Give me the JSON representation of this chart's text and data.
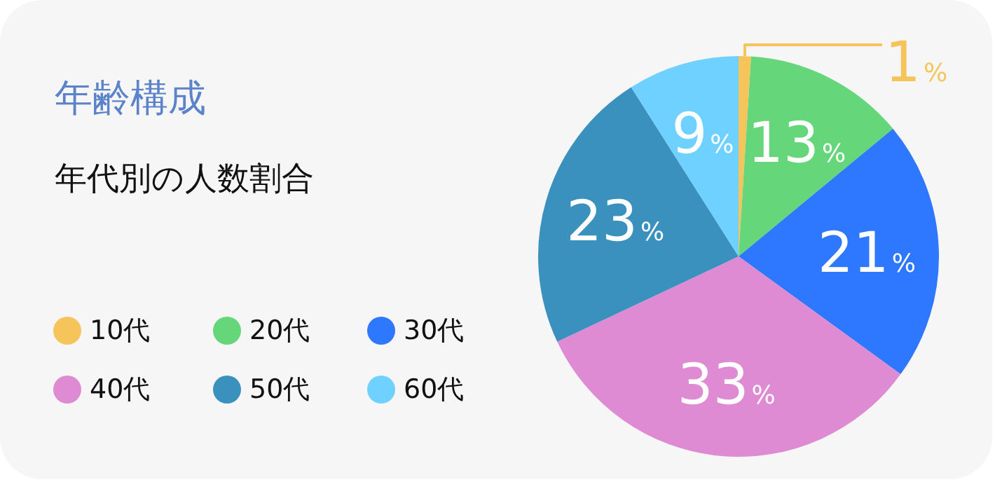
{
  "chart_data": {
    "type": "pie",
    "title": "年齢構成",
    "subtitle": "年代別の人数割合",
    "categories": [
      "10代",
      "20代",
      "30代",
      "40代",
      "50代",
      "60代"
    ],
    "values": [
      1,
      13,
      21,
      33,
      23,
      9
    ],
    "colors": [
      "#f5c55c",
      "#66d67a",
      "#2e77ff",
      "#df8bd4",
      "#3b91bd",
      "#6fd1ff"
    ],
    "value_labels": [
      "1%",
      "13%",
      "21%",
      "33%",
      "23%",
      "9%"
    ],
    "legend": "left"
  }
}
